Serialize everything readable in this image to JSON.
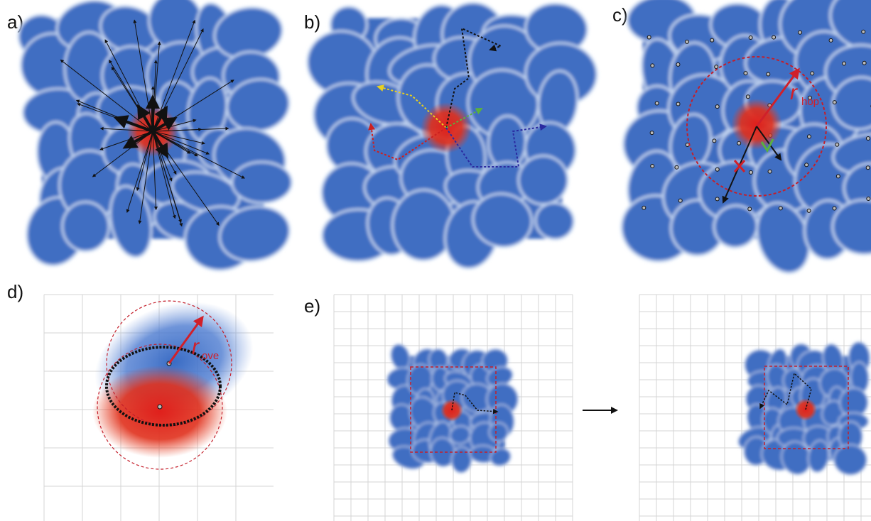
{
  "panels": [
    {
      "label": "a)"
    },
    {
      "label": "b)"
    },
    {
      "label": "c)"
    },
    {
      "label": "d)"
    },
    {
      "label": "e)"
    }
  ],
  "annotations": {
    "r_hop": {
      "symbol": "r",
      "subscript": "hop"
    },
    "r_ove": {
      "symbol": "r",
      "subscript": "ove"
    }
  }
}
